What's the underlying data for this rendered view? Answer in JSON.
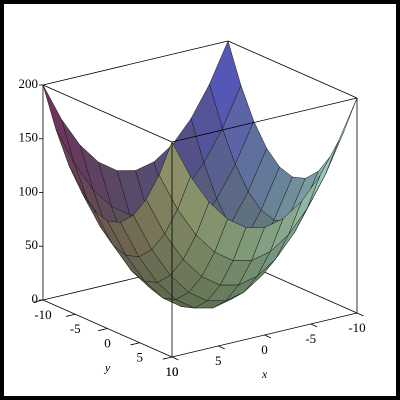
{
  "chart_data": {
    "type": "surface",
    "x": [
      -10,
      -8,
      -6,
      -4,
      -2,
      0,
      2,
      4,
      6,
      8,
      10
    ],
    "y": [
      -10,
      -8,
      -6,
      -4,
      -2,
      0,
      2,
      4,
      6,
      8,
      10
    ],
    "z": [
      [
        200,
        164,
        136,
        116,
        104,
        100,
        104,
        116,
        136,
        164,
        200
      ],
      [
        164,
        128,
        100,
        80,
        68,
        64,
        68,
        80,
        100,
        128,
        164
      ],
      [
        136,
        100,
        72,
        52,
        40,
        36,
        40,
        52,
        72,
        100,
        136
      ],
      [
        116,
        80,
        52,
        32,
        20,
        16,
        20,
        32,
        52,
        80,
        116
      ],
      [
        104,
        68,
        40,
        20,
        8,
        4,
        8,
        20,
        40,
        68,
        104
      ],
      [
        100,
        64,
        36,
        16,
        4,
        0,
        4,
        16,
        36,
        64,
        100
      ],
      [
        104,
        68,
        40,
        20,
        8,
        4,
        8,
        20,
        40,
        68,
        104
      ],
      [
        116,
        80,
        52,
        32,
        20,
        16,
        20,
        32,
        52,
        80,
        116
      ],
      [
        136,
        100,
        72,
        52,
        40,
        36,
        40,
        52,
        72,
        100,
        136
      ],
      [
        164,
        128,
        100,
        80,
        68,
        64,
        68,
        80,
        100,
        128,
        164
      ],
      [
        200,
        164,
        136,
        116,
        104,
        100,
        104,
        116,
        136,
        164,
        200
      ]
    ],
    "xlim": [
      -10,
      10
    ],
    "ylim": [
      -10,
      10
    ],
    "zlim": [
      0,
      200
    ],
    "xticks": [
      -10,
      -5,
      0,
      5,
      10
    ],
    "yticks": [
      -10,
      -5,
      0,
      5,
      10
    ],
    "zticks": [
      0,
      50,
      100,
      150,
      200
    ],
    "xlabel": "x",
    "ylabel": "y"
  }
}
